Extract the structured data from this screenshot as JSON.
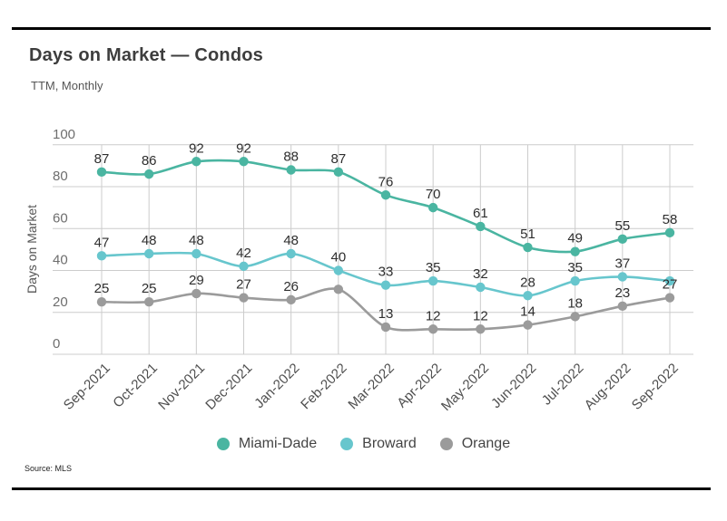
{
  "header": {
    "title": "Days on Market — Condos",
    "subtitle": "TTM, Monthly"
  },
  "footer": {
    "source": "Source:  MLS"
  },
  "colors": {
    "miami_dade": "#4ab5a1",
    "broward": "#67c6cd",
    "orange": "#9b9b9b",
    "gridline": "#cccccc",
    "data_label": "#2e2e2e",
    "tick_label": "#6e6e6e",
    "month_label": "#4f4f4f",
    "border_rule": "#000000"
  },
  "chart_data": {
    "type": "line",
    "title": "Days on Market — Condos",
    "subtitle": "TTM, Monthly",
    "xlabel": "",
    "ylabel": "Days on Market",
    "ylim": [
      0,
      100
    ],
    "yticks": [
      0,
      20,
      40,
      60,
      80,
      100
    ],
    "grid": true,
    "legend_position": "bottom",
    "categories": [
      "Sep-2021",
      "Oct-2021",
      "Nov-2021",
      "Dec-2021",
      "Jan-2022",
      "Feb-2022",
      "Mar-2022",
      "Apr-2022",
      "May-2022",
      "Jun-2022",
      "Jul-2022",
      "Aug-2022",
      "Sep-2022"
    ],
    "series": [
      {
        "name": "Miami-Dade",
        "color": "#4ab5a1",
        "values": [
          87,
          86,
          92,
          92,
          88,
          87,
          76,
          70,
          61,
          51,
          49,
          55,
          58
        ],
        "labels": [
          "87",
          "86",
          "92",
          "92",
          "88",
          "87",
          "76",
          "70",
          "61",
          "51",
          "49",
          "55",
          "58"
        ]
      },
      {
        "name": "Broward",
        "color": "#67c6cd",
        "values": [
          47,
          48,
          48,
          42,
          48,
          40,
          33,
          35,
          32,
          28,
          35,
          37,
          35
        ],
        "labels": [
          "47",
          "48",
          "48",
          "42",
          "48",
          "40",
          "33",
          "35",
          "32",
          "28",
          "35",
          "37",
          ""
        ]
      },
      {
        "name": "Orange",
        "color": "#9b9b9b",
        "values": [
          25,
          25,
          29,
          27,
          26,
          31,
          13,
          12,
          12,
          14,
          18,
          23,
          27
        ],
        "labels": [
          "25",
          "25",
          "29",
          "27",
          "26",
          "",
          "13",
          "12",
          "12",
          "14",
          "18",
          "23",
          "27"
        ]
      }
    ],
    "source": "Source:  MLS"
  }
}
